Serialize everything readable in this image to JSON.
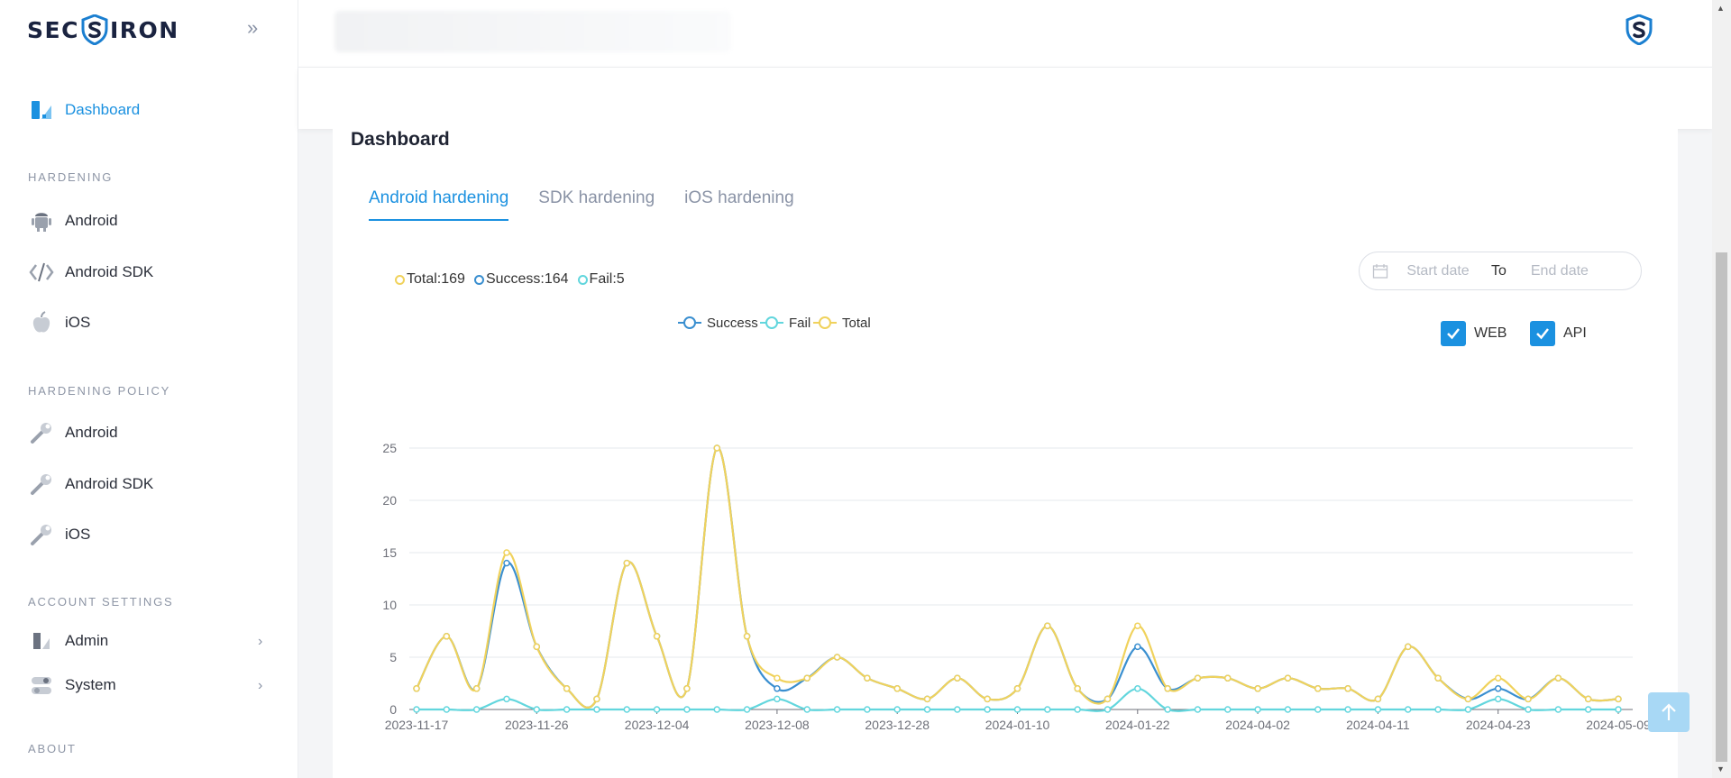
{
  "brand": {
    "logo_left": "SEC",
    "logo_right": "IRON"
  },
  "sidebar": {
    "dashboard": "Dashboard",
    "section_hardening": "HARDENING",
    "hardening_items": [
      {
        "label": "Android",
        "icon": "android-icon"
      },
      {
        "label": "Android SDK",
        "icon": "code-icon"
      },
      {
        "label": "iOS",
        "icon": "apple-icon"
      }
    ],
    "section_policy": "HARDENING POLICY",
    "policy_items": [
      {
        "label": "Android",
        "icon": "wrench-icon"
      },
      {
        "label": "Android SDK",
        "icon": "wrench-icon"
      },
      {
        "label": "iOS",
        "icon": "wrench-icon"
      }
    ],
    "section_account": "ACCOUNT SETTINGS",
    "account_items": [
      {
        "label": "Admin",
        "icon": "admin-icon"
      },
      {
        "label": "System",
        "icon": "toggle-icon"
      }
    ],
    "section_about": "ABOUT"
  },
  "main": {
    "title": "Dashboard",
    "tabs": [
      "Android hardening",
      "SDK hardening",
      "iOS hardening"
    ],
    "active_tab": 0,
    "summary": {
      "total": "Total:169",
      "success": "Success:164",
      "fail": "Fail:5"
    },
    "date_range": {
      "start_placeholder": "Start date",
      "to": "To",
      "end_placeholder": "End date"
    },
    "filters": [
      {
        "label": "WEB",
        "checked": true
      },
      {
        "label": "API",
        "checked": true
      }
    ]
  },
  "colors": {
    "accent": "#1b91e0",
    "success": "#3a8fd0",
    "fail": "#62d6dd",
    "total": "#f0d25c"
  },
  "chart_data": {
    "type": "line",
    "smooth": true,
    "legend": [
      "Success",
      "Fail",
      "Total"
    ],
    "legend_position": "top-center",
    "ylim": [
      0,
      25
    ],
    "yticks": [
      0,
      5,
      10,
      15,
      20,
      25
    ],
    "xtick_labels": [
      "2023-11-17",
      "2023-11-26",
      "2023-12-04",
      "2023-12-08",
      "2023-12-28",
      "2024-01-10",
      "2024-01-22",
      "2024-04-02",
      "2024-04-11",
      "2024-04-23",
      "2024-05-09"
    ],
    "grid": true,
    "series": [
      {
        "name": "Success",
        "values": [
          2,
          7,
          2,
          14,
          6,
          2,
          1,
          14,
          7,
          2,
          25,
          7,
          2,
          3,
          5,
          3,
          2,
          1,
          3,
          1,
          2,
          8,
          2,
          1,
          6,
          2,
          3,
          3,
          2,
          3,
          2,
          2,
          1,
          6,
          3,
          1,
          2,
          1,
          3,
          1,
          1
        ]
      },
      {
        "name": "Fail",
        "values": [
          0,
          0,
          0,
          1,
          0,
          0,
          0,
          0,
          0,
          0,
          0,
          0,
          1,
          0,
          0,
          0,
          0,
          0,
          0,
          0,
          0,
          0,
          0,
          0,
          2,
          0,
          0,
          0,
          0,
          0,
          0,
          0,
          0,
          0,
          0,
          0,
          1,
          0,
          0,
          0,
          0
        ]
      },
      {
        "name": "Total",
        "values": [
          2,
          7,
          2,
          15,
          6,
          2,
          1,
          14,
          7,
          2,
          25,
          7,
          3,
          3,
          5,
          3,
          2,
          1,
          3,
          1,
          2,
          8,
          2,
          1,
          8,
          2,
          3,
          3,
          2,
          3,
          2,
          2,
          1,
          6,
          3,
          1,
          3,
          1,
          3,
          1,
          1
        ]
      }
    ]
  }
}
